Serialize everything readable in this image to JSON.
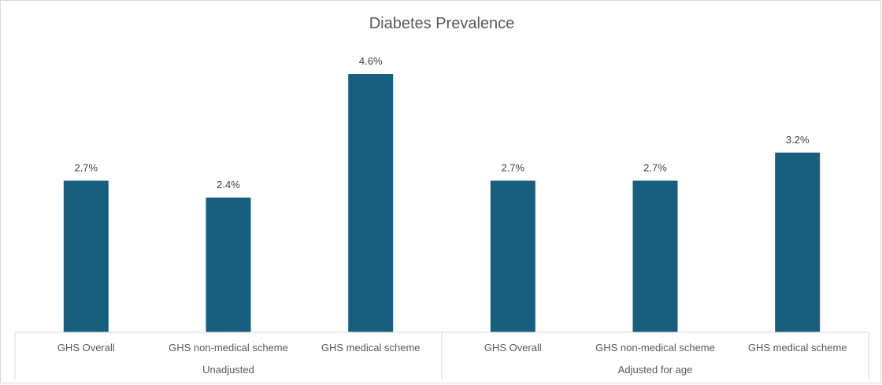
{
  "chart_data": {
    "type": "bar",
    "title": "Diabetes Prevalence",
    "groups": [
      {
        "label": "Unadjusted",
        "categories": [
          "GHS Overall",
          "GHS non-medical scheme",
          "GHS medical scheme"
        ],
        "values": [
          2.7,
          2.4,
          4.6
        ],
        "labels": [
          "2.7%",
          "2.4%",
          "4.6%"
        ]
      },
      {
        "label": "Adjusted for age",
        "categories": [
          "GHS Overall",
          "GHS non-medical scheme",
          "GHS medical scheme"
        ],
        "values": [
          2.7,
          2.7,
          3.2
        ],
        "labels": [
          "2.7%",
          "2.7%",
          "3.2%"
        ]
      }
    ],
    "ylim": [
      0,
      5.1
    ],
    "grid": false,
    "legend": "none",
    "bar_color": "#175e7f"
  }
}
